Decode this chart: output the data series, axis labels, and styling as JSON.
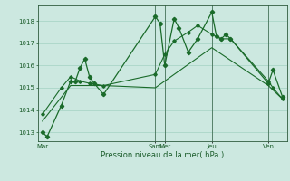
{
  "background_color": "#cce8e0",
  "grid_color": "#99ccbb",
  "line_color": "#1a6b2a",
  "xlabel": "Pression niveau de la mer( hPa )",
  "yticks": [
    1013,
    1014,
    1015,
    1016,
    1017,
    1018
  ],
  "ylim": [
    1012.6,
    1018.7
  ],
  "xtick_labels": [
    "Mar",
    "Sam",
    "Mer",
    "Jeu",
    "Ven"
  ],
  "xtick_positions": [
    0,
    24,
    26,
    36,
    48
  ],
  "xlim": [
    -1,
    52
  ],
  "series1_x": [
    0,
    1,
    4,
    6,
    7,
    8,
    9,
    10,
    11,
    13,
    24,
    25,
    26,
    28,
    29,
    31,
    33,
    36,
    37,
    38,
    39,
    40,
    48,
    49,
    51
  ],
  "series1_y": [
    1013.0,
    1012.8,
    1014.2,
    1015.3,
    1015.3,
    1015.9,
    1016.3,
    1015.5,
    1015.2,
    1014.7,
    1018.2,
    1017.9,
    1016.0,
    1018.1,
    1017.7,
    1016.6,
    1017.2,
    1018.4,
    1017.3,
    1017.2,
    1017.4,
    1017.2,
    1015.2,
    1015.8,
    1014.6
  ],
  "series2_x": [
    0,
    6,
    13,
    24,
    36,
    48,
    51
  ],
  "series2_y": [
    1013.5,
    1015.1,
    1015.1,
    1015.0,
    1016.8,
    1015.1,
    1014.5
  ],
  "series3_x": [
    0,
    4,
    6,
    8,
    10,
    13,
    24,
    26,
    28,
    31,
    33,
    36,
    38,
    40,
    48,
    49,
    51
  ],
  "series3_y": [
    1013.8,
    1015.0,
    1015.5,
    1015.3,
    1015.2,
    1015.1,
    1015.6,
    1016.5,
    1017.1,
    1017.5,
    1017.8,
    1017.4,
    1017.2,
    1017.2,
    1015.3,
    1015.0,
    1014.5
  ],
  "vline_positions": [
    0,
    24,
    26,
    36,
    48
  ],
  "figsize": [
    3.2,
    2.0
  ],
  "dpi": 100
}
